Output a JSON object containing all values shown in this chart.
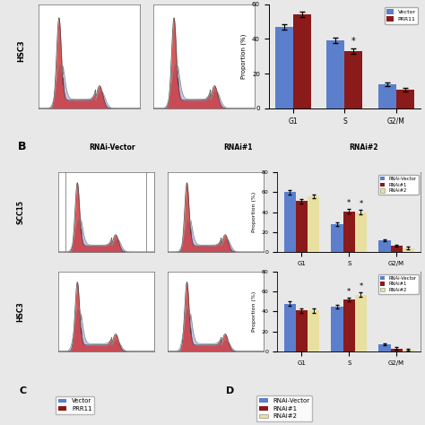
{
  "top_bar": {
    "categories": [
      "G1",
      "S",
      "G2/M"
    ],
    "vector": [
      47,
      39,
      14
    ],
    "prr11": [
      54,
      33,
      11
    ],
    "vector_err": [
      1.5,
      1.5,
      1.0
    ],
    "prr11_err": [
      1.5,
      1.5,
      1.0
    ],
    "ylim": [
      0,
      60
    ],
    "yticks": [
      0,
      20,
      40,
      60
    ],
    "ylabel": "Proportion (%)",
    "legend": [
      "Vector",
      "PRR11"
    ],
    "colors": [
      "#5b7fcd",
      "#8b1a1a"
    ]
  },
  "scc15_bar": {
    "categories": [
      "G1",
      "S",
      "G2/M"
    ],
    "rnai_vector": [
      60,
      28,
      12
    ],
    "rnai1": [
      51,
      41,
      6
    ],
    "rnai2": [
      56,
      40,
      4
    ],
    "rnai_vector_err": [
      2,
      2,
      1
    ],
    "rnai1_err": [
      2,
      2,
      1
    ],
    "rnai2_err": [
      2,
      2,
      1
    ],
    "ylim": [
      0,
      80
    ],
    "yticks": [
      0,
      20,
      40,
      60,
      80
    ],
    "ylabel": "Proportion (%)",
    "legend": [
      "RNAi-Vector",
      "RNAi#1",
      "RNAi#2"
    ],
    "colors": [
      "#5b7fcd",
      "#8b1a1a",
      "#e8e0a0"
    ]
  },
  "hsc3_bar": {
    "categories": [
      "G1",
      "S",
      "G2/M"
    ],
    "rnai_vector": [
      48,
      45,
      7
    ],
    "rnai1": [
      41,
      52,
      3
    ],
    "rnai2": [
      41,
      57,
      2
    ],
    "rnai_vector_err": [
      2,
      2,
      1
    ],
    "rnai1_err": [
      2,
      2,
      1
    ],
    "rnai2_err": [
      2,
      2,
      1
    ],
    "ylim": [
      0,
      80
    ],
    "yticks": [
      0,
      20,
      40,
      60,
      80
    ],
    "ylabel": "Proportion (%)",
    "legend": [
      "RNAi-Vector",
      "RNAi#1",
      "RNAi#2"
    ],
    "colors": [
      "#5b7fcd",
      "#8b1a1a",
      "#e8e0a0"
    ]
  },
  "flow_red": "#cc2222",
  "flow_blue": "#8899dd",
  "flow_purple": "#9966bb",
  "bg_color": "#e8e8e8"
}
